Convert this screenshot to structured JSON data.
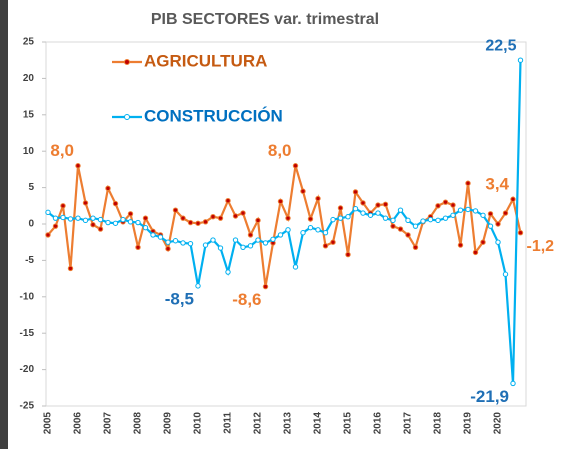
{
  "chart_data": {
    "type": "line",
    "title": "PIB SECTORES var. trimestral",
    "categories": [
      "2005",
      null,
      null,
      null,
      "2006",
      null,
      null,
      null,
      "2007",
      null,
      null,
      null,
      "2008",
      null,
      null,
      null,
      "2009",
      null,
      null,
      null,
      "2010",
      null,
      null,
      null,
      "2011",
      null,
      null,
      null,
      "2012",
      null,
      null,
      null,
      "2013",
      null,
      null,
      null,
      "2014",
      null,
      null,
      null,
      "2015",
      null,
      null,
      null,
      "2016",
      null,
      null,
      null,
      "2017",
      null,
      null,
      null,
      "2018",
      null,
      null,
      null,
      "2019",
      null,
      null,
      null,
      "2020",
      null,
      null,
      null
    ],
    "series": [
      {
        "name": "AGRICULTURA",
        "color": "#ed7d31",
        "marker_color": "#c00000",
        "label_color": "#ed7d31",
        "legend_text_color": "#c55a11",
        "values": [
          -1.5,
          -0.3,
          2.5,
          -6.1,
          8.0,
          2.9,
          -0.1,
          -0.7,
          4.9,
          2.8,
          0.3,
          1.4,
          -3.2,
          0.8,
          -1.0,
          -1.5,
          -3.4,
          1.9,
          0.8,
          0.2,
          0.1,
          0.3,
          1.0,
          0.8,
          3.2,
          1.1,
          1.5,
          -1.5,
          0.5,
          -8.6,
          -2.6,
          3.1,
          0.8,
          8.0,
          4.5,
          0.7,
          3.5,
          -3.0,
          -2.5,
          2.2,
          -4.2,
          4.4,
          2.9,
          1.5,
          2.6,
          2.7,
          -0.3,
          -0.7,
          -1.5,
          -3.2,
          0.3,
          1.0,
          2.5,
          3.0,
          2.6,
          -2.9,
          5.6,
          -3.9,
          -2.5,
          1.4,
          0.0,
          1.5,
          3.4,
          -1.2
        ],
        "value_labels": [
          null,
          null,
          null,
          null,
          "8,0",
          null,
          null,
          null,
          null,
          null,
          null,
          null,
          null,
          null,
          null,
          null,
          null,
          null,
          null,
          null,
          null,
          null,
          null,
          null,
          null,
          null,
          null,
          null,
          null,
          "-8,6",
          null,
          null,
          null,
          "8,0",
          null,
          null,
          null,
          null,
          null,
          null,
          null,
          null,
          null,
          null,
          null,
          null,
          null,
          null,
          null,
          null,
          null,
          null,
          null,
          null,
          null,
          null,
          null,
          null,
          null,
          null,
          null,
          null,
          "3,4",
          "-1,2"
        ]
      },
      {
        "name": "CONSTRUCCIÓN",
        "color": "#00b0f0",
        "marker_color": "#ffffff",
        "label_color": "#1f6fb5",
        "legend_text_color": "#0070c0",
        "values": [
          1.6,
          0.8,
          0.9,
          0.7,
          0.8,
          0.5,
          0.8,
          0.6,
          0.2,
          0.1,
          0.6,
          0.3,
          0.2,
          -0.5,
          -1.5,
          -1.8,
          -2.5,
          -2.3,
          -2.6,
          -2.7,
          -8.5,
          -2.9,
          -2.2,
          -3.3,
          -6.6,
          -2.2,
          -3.2,
          -3.0,
          -2.2,
          -2.6,
          -2.1,
          -1.5,
          -0.8,
          -5.9,
          -1.2,
          -0.5,
          -0.8,
          -1.2,
          0.6,
          0.8,
          1.0,
          2.1,
          1.5,
          1.2,
          1.5,
          0.8,
          0.5,
          1.9,
          0.5,
          -0.3,
          0.4,
          0.6,
          0.5,
          0.8,
          1.2,
          1.9,
          2.0,
          1.8,
          1.2,
          -0.3,
          -2.5,
          -6.9,
          -21.9,
          22.5
        ],
        "value_labels": [
          null,
          null,
          null,
          null,
          null,
          null,
          null,
          null,
          null,
          null,
          null,
          null,
          null,
          null,
          null,
          null,
          null,
          null,
          null,
          null,
          "-8,5",
          null,
          null,
          null,
          null,
          null,
          null,
          null,
          null,
          null,
          null,
          null,
          null,
          null,
          null,
          null,
          null,
          null,
          null,
          null,
          null,
          null,
          null,
          null,
          null,
          null,
          null,
          null,
          null,
          null,
          null,
          null,
          null,
          null,
          null,
          null,
          null,
          null,
          null,
          null,
          null,
          null,
          "-21,9",
          "22,5"
        ]
      }
    ],
    "ylim": [
      -25,
      25
    ],
    "yticks": [
      -25,
      -20,
      -15,
      -10,
      -5,
      0,
      5,
      10,
      15,
      20,
      25
    ],
    "grid": false
  }
}
